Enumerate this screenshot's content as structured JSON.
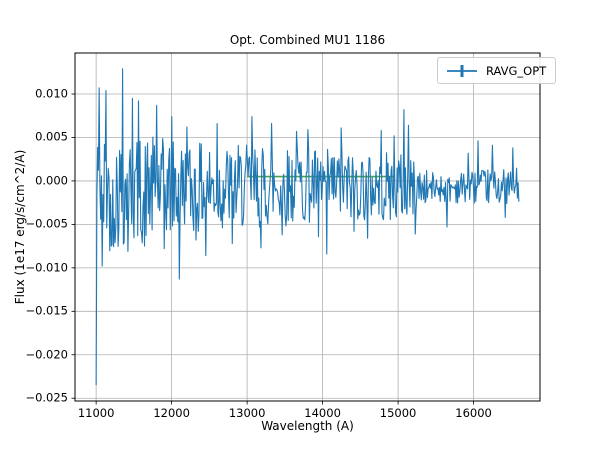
{
  "chart_data": {
    "type": "line",
    "title": "Opt. Combined MU1 1186",
    "xlabel": "Wavelength (A)",
    "ylabel": "Flux (1e17 erg/s/cm^2/A)",
    "xlim": [
      10720,
      16880
    ],
    "ylim": [
      -0.02532,
      0.01472
    ],
    "xticks": {
      "values": [
        11000,
        12000,
        13000,
        14000,
        15000,
        16000
      ],
      "labels": [
        "11000",
        "12000",
        "13000",
        "14000",
        "15000",
        "16000"
      ]
    },
    "yticks": {
      "values": [
        0.01,
        0.005,
        0.0,
        -0.005,
        -0.01,
        -0.015,
        -0.02,
        -0.025
      ],
      "labels": [
        "0.010",
        "0.005",
        "0.000",
        "−0.005",
        "−0.010",
        "−0.015",
        "−0.020",
        "−0.025"
      ]
    },
    "grid": {
      "show": true,
      "color": "#b0b0b0"
    },
    "colors": {
      "line": "#1f77b4",
      "reference": "#4aa54a",
      "spine": "#000000",
      "tick": "#000000"
    },
    "legend": {
      "label": "RAVG_OPT",
      "marker": "errorbar",
      "position": "upper-right"
    },
    "series": [
      {
        "name": "RAVG_OPT",
        "type": "noisy-line",
        "color": "#1f77b4",
        "x_start": 11000,
        "x_end": 16600,
        "n_points": 560,
        "seed": 42,
        "mean_breakpoints": [
          [
            11000,
            -0.0012
          ],
          [
            12500,
            -0.0008
          ],
          [
            14000,
            -0.0005
          ],
          [
            15300,
            -0.0008
          ],
          [
            16600,
            -0.0006
          ]
        ],
        "amplitude_breakpoints": [
          [
            11000,
            0.0072
          ],
          [
            11600,
            0.0063
          ],
          [
            12400,
            0.0052
          ],
          [
            13200,
            0.0048
          ],
          [
            14200,
            0.0042
          ],
          [
            14900,
            0.004
          ],
          [
            15120,
            0.0042
          ],
          [
            15300,
            0.0022
          ],
          [
            15500,
            0.0017
          ],
          [
            16000,
            0.0019
          ],
          [
            16600,
            0.0021
          ]
        ],
        "spikes": [
          [
            11000,
            -0.0235
          ],
          [
            11040,
            0.0107
          ],
          [
            11080,
            -0.0098
          ],
          [
            11130,
            0.0104
          ],
          [
            11200,
            -0.0075
          ],
          [
            11350,
            0.0129
          ],
          [
            11420,
            -0.0081
          ],
          [
            11480,
            0.0095
          ],
          [
            11560,
            0.0092
          ],
          [
            11640,
            -0.0075
          ],
          [
            11800,
            0.0087
          ],
          [
            11900,
            -0.0078
          ],
          [
            12000,
            0.0074
          ],
          [
            12100,
            -0.0113
          ],
          [
            12200,
            0.0062
          ],
          [
            12320,
            -0.0068
          ],
          [
            12450,
            -0.0086
          ],
          [
            12600,
            0.0066
          ],
          [
            12800,
            -0.0072
          ],
          [
            13060,
            0.0074
          ],
          [
            13180,
            -0.0077
          ],
          [
            13320,
            0.0066
          ],
          [
            13460,
            -0.0062
          ],
          [
            13650,
            0.0057
          ],
          [
            13800,
            0.0059
          ],
          [
            13950,
            -0.0064
          ],
          [
            14060,
            -0.0084
          ],
          [
            14250,
            0.0061
          ],
          [
            14420,
            -0.0058
          ],
          [
            14600,
            -0.0066
          ],
          [
            14780,
            0.0058
          ],
          [
            14950,
            0.0052
          ],
          [
            15080,
            0.0082
          ],
          [
            15140,
            0.0064
          ],
          [
            15230,
            -0.0061
          ],
          [
            15650,
            -0.0053
          ],
          [
            15930,
            0.0032
          ],
          [
            16060,
            0.0046
          ],
          [
            16250,
            0.0041
          ],
          [
            16420,
            -0.0042
          ],
          [
            16520,
            0.0038
          ]
        ]
      },
      {
        "name": "reference-line",
        "type": "segment",
        "color": "#4aa54a",
        "points": [
          [
            13000,
            0.0005
          ],
          [
            14950,
            0.0005
          ]
        ]
      }
    ]
  }
}
